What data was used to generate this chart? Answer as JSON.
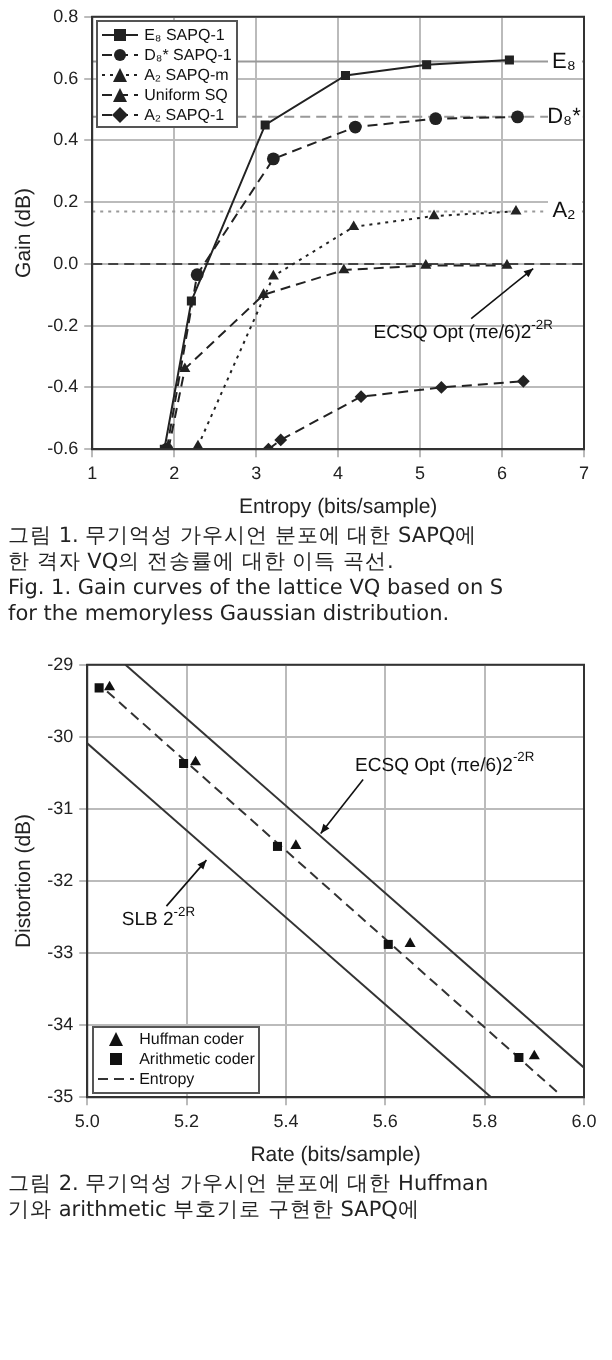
{
  "chart_data": [
    {
      "type": "line",
      "xlabel": "Entropy (bits/sample)",
      "ylabel": "Gain (dB)",
      "xlim": [
        1,
        7
      ],
      "xticks": [
        1,
        2,
        3,
        4,
        5,
        6,
        7
      ],
      "ylim": [
        -0.6,
        0.8
      ],
      "yticks": [
        -0.6,
        -0.4,
        -0.2,
        {
          "value": 0,
          "label": "0.0"
        },
        0.2,
        0.4,
        0.6,
        0.8
      ],
      "grid": true,
      "legend": "top left",
      "series": [
        {
          "name": "E₈ SAPQ-1",
          "color": "#222222",
          "marker": "square",
          "line_style": "solid",
          "x": [
            1.88,
            2.21,
            3.11,
            4.09,
            5.08,
            6.09
          ],
          "values": [
            -0.6,
            -0.12,
            0.45,
            0.61,
            0.645,
            0.66
          ]
        },
        {
          "name": "D₈* SAPQ-1",
          "color": "#222222",
          "marker": "circle",
          "line_style": "dashed",
          "x": [
            1.91,
            2.28,
            3.21,
            4.21,
            5.19,
            6.19
          ],
          "values": [
            -0.6,
            -0.035,
            0.34,
            0.443,
            0.47,
            0.476
          ]
        },
        {
          "name": "A₂ SAPQ-m",
          "color": "#222222",
          "marker": "triangle",
          "line_style": "dotted",
          "x": [
            2.29,
            3.21,
            4.19,
            5.17,
            6.17
          ],
          "values": [
            -0.59,
            -0.04,
            0.12,
            0.155,
            0.17
          ]
        },
        {
          "name": "Uniform SQ",
          "color": "#222222",
          "marker": "triangle",
          "line_style": "dashed",
          "x": [
            1.93,
            2.13,
            3.09,
            4.07,
            5.07,
            6.06
          ],
          "values": [
            -0.6,
            -0.34,
            -0.1,
            -0.02,
            -0.005,
            -0.005
          ]
        },
        {
          "name": "A₂ SAPQ-1",
          "color": "#222222",
          "marker": "diamond",
          "line_style": "dashed",
          "x": [
            3.15,
            3.3,
            4.28,
            5.26,
            6.26
          ],
          "values": [
            -0.6,
            -0.57,
            -0.43,
            -0.4,
            -0.38
          ]
        }
      ],
      "ref_lines": [
        {
          "axis": "y",
          "value": 0.655,
          "label": "E₈",
          "color": "#999999",
          "line_style": "solid"
        },
        {
          "axis": "y",
          "value": 0.476,
          "label": "D₈*",
          "color": "#999999",
          "line_style": "dashed"
        },
        {
          "axis": "y",
          "value": 0.17,
          "label": "A₂",
          "color": "#999999",
          "line_style": "dotted"
        },
        {
          "axis": "y",
          "value": 0,
          "color": "#444444",
          "line_style": "dashed"
        }
      ],
      "annotations": [
        {
          "text": "ECSQ Opt (πe/6)2$^{-2R}$",
          "x": 6.38,
          "y": -0.015
        },
        "그림 1.  무기억성 가우시언 분포에 대한 SAPQ에",
        "한 격자 VQ의 전송률에 대한 이득 곡선.",
        "Fig.  1.  Gain curves of the lattice VQ based on S",
        "for the memoryless Gaussian distribution."
      ]
    },
    {
      "type": "scatter",
      "xlabel": "Rate (bits/sample)",
      "ylabel": "Distortion (dB)",
      "xlim": [
        5,
        6
      ],
      "xticks": [
        {
          "value": 5,
          "label": "5.0"
        },
        5.2,
        5.4,
        5.6,
        5.8,
        {
          "value": 6,
          "label": "6.0"
        }
      ],
      "ylim": [
        -35,
        -29
      ],
      "yticks": [
        -35,
        -34,
        -33,
        -32,
        -31,
        -30,
        -29
      ],
      "grid": true,
      "legend": "bottom left",
      "series": [
        {
          "name": "Huffman coder",
          "color": "#111111",
          "marker": "triangle",
          "x": [
            5.045,
            5.218,
            5.42,
            5.65,
            5.9
          ],
          "values": [
            -29.31,
            -30.35,
            -31.51,
            -32.87,
            -34.43
          ]
        },
        {
          "name": "Arithmetic coder",
          "color": "#111111",
          "marker": "square",
          "x": [
            5.024,
            5.194,
            5.383,
            5.606,
            5.869
          ],
          "values": [
            -29.32,
            -30.37,
            -31.52,
            -32.88,
            -34.45
          ]
        },
        {
          "name": "Entropy",
          "type": "line",
          "color": "#333333",
          "marker": "none",
          "line_style": "dashed",
          "x": [
            5.04,
            5.948
          ],
          "values": [
            -29.37,
            -34.94
          ]
        },
        {
          "type": "line",
          "color": "#333333",
          "marker": "none",
          "line_style": "solid",
          "x": [
            5.077,
            6
          ],
          "values": [
            -29,
            -34.59
          ]
        },
        {
          "type": "line",
          "color": "#333333",
          "marker": "none",
          "line_style": "solid",
          "x": [
            5,
            5.813
          ],
          "values": [
            -30.09,
            -35
          ]
        }
      ],
      "annotations": [
        {
          "text": "ECSQ Opt (πe/6)2$^{-2R}$",
          "x": 5.47,
          "y": -31.34
        },
        {
          "text": "SLB 2$^{-2R}$",
          "x": 5.24,
          "y": -31.71
        },
        "그림 2.  무기억성 가우시언 분포에 대한 Huffman",
        "기와 arithmetic 부호기로 구현한 SAPQ에"
      ]
    }
  ]
}
